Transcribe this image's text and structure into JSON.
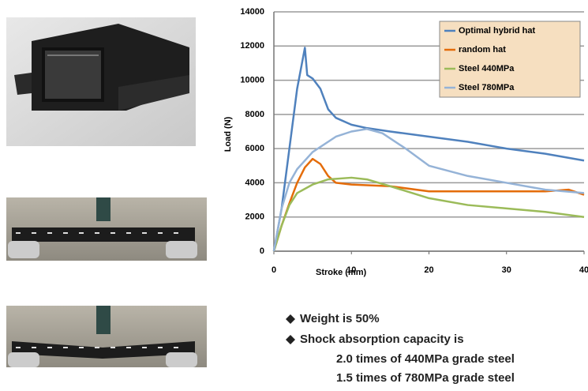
{
  "chart_data": {
    "type": "line",
    "x_label": "Stroke (mm)",
    "y_label": "Load (N)",
    "xlim": [
      0,
      40
    ],
    "xticks": [
      0,
      10,
      20,
      30,
      40
    ],
    "ylim": [
      0,
      14000
    ],
    "yticks": [
      0,
      2000,
      4000,
      6000,
      8000,
      10000,
      12000,
      14000
    ],
    "grid": true,
    "legend": "top-right",
    "series": [
      {
        "name": "Optimal hybrid hat",
        "color": "#4f81bd",
        "x": [
          0,
          1,
          2,
          3,
          4,
          4.3,
          5,
          6,
          7,
          8,
          10,
          12,
          15,
          20,
          25,
          30,
          35,
          40
        ],
        "values": [
          0,
          2500,
          6000,
          9500,
          11900,
          10300,
          10100,
          9500,
          8300,
          7800,
          7400,
          7200,
          7000,
          6700,
          6400,
          6000,
          5700,
          5300
        ]
      },
      {
        "name": "random hat",
        "color": "#e46c0a",
        "x": [
          0,
          1,
          2,
          3,
          4,
          5,
          6,
          7,
          8,
          10,
          15,
          20,
          25,
          30,
          35,
          38,
          40
        ],
        "values": [
          0,
          1500,
          2800,
          4000,
          4900,
          5400,
          5100,
          4400,
          4000,
          3900,
          3800,
          3500,
          3500,
          3500,
          3500,
          3600,
          3300
        ]
      },
      {
        "name": "Steel  440MPa",
        "color": "#9bbb59",
        "x": [
          0,
          1,
          2,
          3,
          5,
          7,
          10,
          12,
          15,
          20,
          25,
          30,
          35,
          40
        ],
        "values": [
          0,
          1500,
          2700,
          3400,
          3900,
          4200,
          4300,
          4200,
          3800,
          3100,
          2700,
          2500,
          2300,
          2000
        ]
      },
      {
        "name": "Steel  780MPa",
        "color": "#95b3d7",
        "x": [
          0,
          1,
          2,
          3,
          5,
          8,
          10,
          12,
          14,
          17,
          20,
          25,
          30,
          35,
          40
        ],
        "values": [
          0,
          2500,
          4000,
          4800,
          5800,
          6700,
          7000,
          7150,
          6900,
          6000,
          5000,
          4400,
          4000,
          3600,
          3400
        ]
      }
    ]
  },
  "notes": {
    "bullets": [
      "Weight is 50%",
      "Shock absorption capacity is"
    ],
    "details": [
      "2.0 times of 440MPa grade steel",
      "1.5 times of 780MPa grade steel"
    ]
  }
}
